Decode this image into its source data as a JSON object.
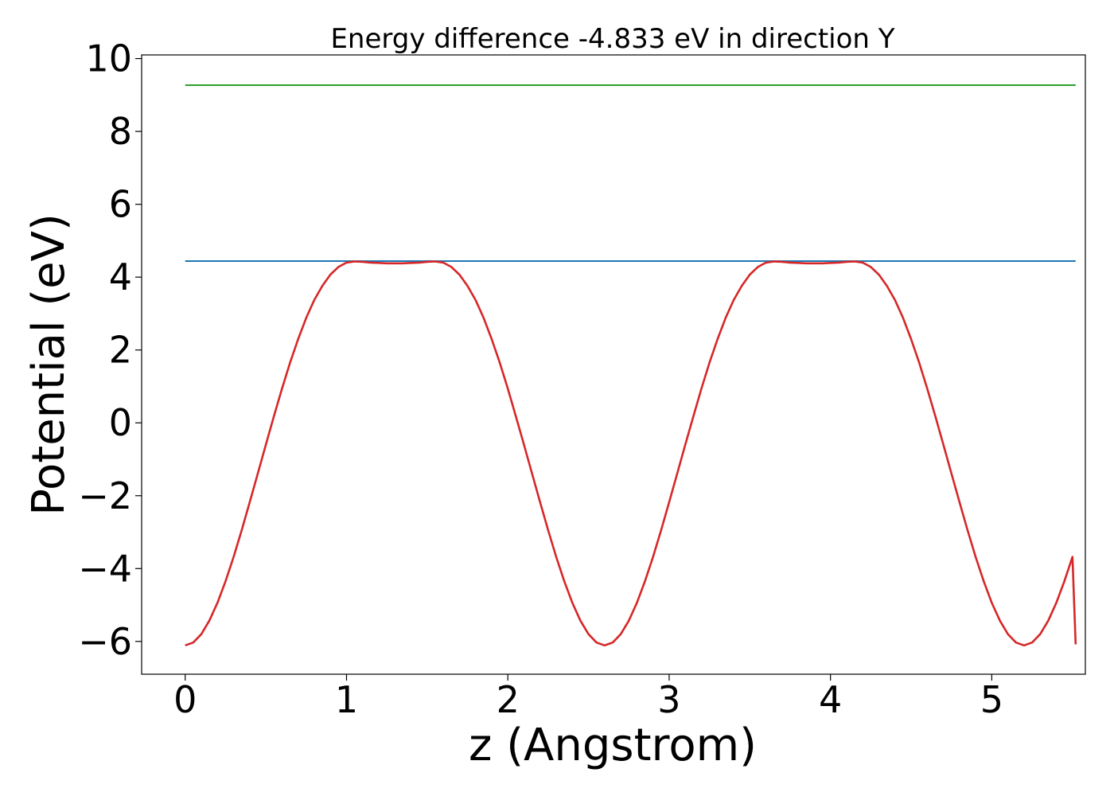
{
  "chart_data": {
    "type": "line",
    "title": "Energy difference -4.833 eV in direction Y",
    "xlabel": "z (Angstrom)",
    "ylabel": "Potential (eV)",
    "xlim": [
      -0.27,
      5.58
    ],
    "ylim": [
      -6.9,
      10.1
    ],
    "xticks": [
      0,
      1,
      2,
      3,
      4,
      5
    ],
    "xtick_labels": [
      "0",
      "1",
      "2",
      "3",
      "4",
      "5"
    ],
    "yticks": [
      -6,
      -4,
      -2,
      0,
      2,
      4,
      6,
      8,
      10
    ],
    "ytick_labels": [
      "−6",
      "−4",
      "−2",
      "0",
      "2",
      "4",
      "6",
      "8",
      "10"
    ],
    "grid": false,
    "legend": "none",
    "series": [
      {
        "color": "#2ca02c",
        "x": [
          0,
          5.52
        ],
        "y": [
          9.27,
          9.27
        ]
      },
      {
        "color": "#1f77b4",
        "x": [
          0,
          5.52
        ],
        "y": [
          4.44,
          4.44
        ]
      },
      {
        "color": "#d62728",
        "x": [
          0.0,
          0.05,
          0.1,
          0.15,
          0.2,
          0.25,
          0.3,
          0.35,
          0.4,
          0.45,
          0.5,
          0.55,
          0.6,
          0.65,
          0.7,
          0.75,
          0.8,
          0.85,
          0.9,
          0.95,
          1.0,
          1.05,
          1.1,
          1.15,
          1.2,
          1.25,
          1.3,
          1.35,
          1.4,
          1.45,
          1.5,
          1.55,
          1.6,
          1.65,
          1.7,
          1.75,
          1.8,
          1.85,
          1.9,
          1.95,
          2.0,
          2.05,
          2.1,
          2.15,
          2.2,
          2.25,
          2.3,
          2.35,
          2.4,
          2.45,
          2.5,
          2.55,
          2.6,
          2.65,
          2.7,
          2.75,
          2.8,
          2.85,
          2.9,
          2.95,
          3.0,
          3.05,
          3.1,
          3.15,
          3.2,
          3.25,
          3.3,
          3.35,
          3.4,
          3.45,
          3.5,
          3.55,
          3.6,
          3.65,
          3.7,
          3.75,
          3.8,
          3.85,
          3.9,
          3.95,
          4.0,
          4.05,
          4.1,
          4.15,
          4.2,
          4.25,
          4.3,
          4.35,
          4.4,
          4.45,
          4.5,
          4.55,
          4.6,
          4.65,
          4.7,
          4.75,
          4.8,
          4.85,
          4.9,
          4.95,
          5.0,
          5.05,
          5.1,
          5.15,
          5.2,
          5.25,
          5.3,
          5.35,
          5.4,
          5.45,
          5.5,
          5.52
        ],
        "y": [
          -6.11,
          -6.03,
          -5.8,
          -5.43,
          -4.94,
          -4.35,
          -3.68,
          -2.95,
          -2.18,
          -1.39,
          -0.6,
          0.18,
          0.94,
          1.65,
          2.3,
          2.88,
          3.37,
          3.76,
          4.07,
          4.28,
          4.4,
          4.43,
          4.42,
          4.4,
          4.39,
          4.38,
          4.38,
          4.38,
          4.39,
          4.4,
          4.42,
          4.43,
          4.4,
          4.28,
          4.07,
          3.76,
          3.37,
          2.88,
          2.3,
          1.65,
          0.94,
          0.18,
          -0.6,
          -1.39,
          -2.18,
          -2.95,
          -3.68,
          -4.35,
          -4.94,
          -5.43,
          -5.8,
          -6.03,
          -6.11,
          -6.03,
          -5.8,
          -5.43,
          -4.94,
          -4.35,
          -3.68,
          -2.95,
          -2.18,
          -1.39,
          -0.6,
          0.18,
          0.94,
          1.65,
          2.3,
          2.88,
          3.37,
          3.76,
          4.07,
          4.28,
          4.4,
          4.43,
          4.42,
          4.4,
          4.39,
          4.38,
          4.38,
          4.38,
          4.39,
          4.4,
          4.42,
          4.43,
          4.4,
          4.28,
          4.07,
          3.76,
          3.37,
          2.88,
          2.3,
          1.65,
          0.94,
          0.18,
          -0.6,
          -1.39,
          -2.18,
          -2.95,
          -3.68,
          -4.35,
          -4.94,
          -5.43,
          -5.8,
          -6.03,
          -6.11,
          -6.03,
          -5.8,
          -5.43,
          -4.94,
          -4.35,
          -3.68,
          -6.08
        ]
      }
    ]
  }
}
